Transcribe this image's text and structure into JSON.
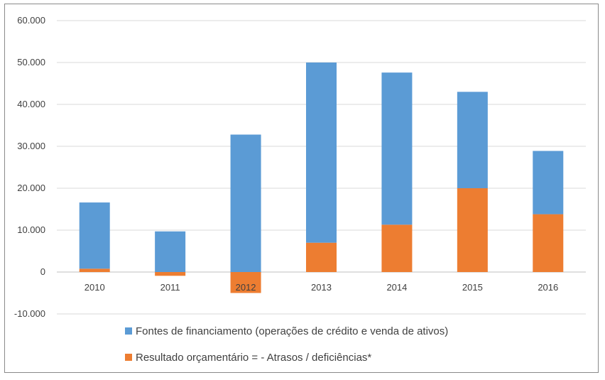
{
  "chart_data": {
    "type": "bar",
    "stacked": true,
    "title": "",
    "xlabel": "",
    "ylabel": "",
    "categories": [
      "2010",
      "2011",
      "2012",
      "2013",
      "2014",
      "2015",
      "2016"
    ],
    "series": [
      {
        "name": "Resultado orçamentário = - Atrasos / deficiências*",
        "color": "#ED7D31",
        "values": [
          800,
          -900,
          -5000,
          7000,
          11300,
          20000,
          13800
        ]
      },
      {
        "name": "Fontes de financiamento (operações de crédito e venda de ativos)",
        "color": "#5B9BD5",
        "values": [
          15800,
          9700,
          32800,
          43000,
          36300,
          23000,
          15100
        ]
      }
    ],
    "ylim": [
      -10000,
      60000
    ],
    "yticks": [
      60000,
      50000,
      40000,
      30000,
      20000,
      10000,
      0,
      -10000
    ],
    "ytick_labels": [
      "60.000",
      "50.000",
      "40.000",
      "30.000",
      "20.000",
      "10.000",
      "0",
      "-10.000"
    ],
    "grid": true,
    "legend_position": "bottom"
  }
}
